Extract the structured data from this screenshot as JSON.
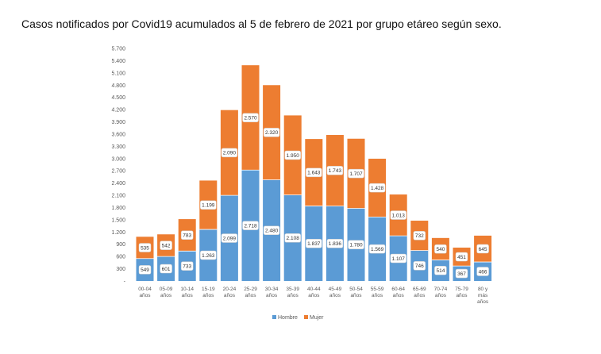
{
  "title": "Casos notificados por Covid19 acumulados al 5 de febrero de 2021 por grupo etáreo según sexo.",
  "chart_data": {
    "type": "bar",
    "stacked": true,
    "categories": [
      [
        "00-04",
        "años"
      ],
      [
        "05-09",
        "años"
      ],
      [
        "10-14",
        "años"
      ],
      [
        "15-19",
        "años"
      ],
      [
        "20-24",
        "años"
      ],
      [
        "25-29",
        "años"
      ],
      [
        "30-34",
        "años"
      ],
      [
        "35-39",
        "años"
      ],
      [
        "40-44",
        "años"
      ],
      [
        "45-49",
        "años"
      ],
      [
        "50-54",
        "años"
      ],
      [
        "55-59",
        "años"
      ],
      [
        "60-64",
        "años"
      ],
      [
        "65-69",
        "años"
      ],
      [
        "70-74",
        "años"
      ],
      [
        "75-79",
        "años"
      ],
      [
        "80 y",
        "más",
        "años"
      ]
    ],
    "series": [
      {
        "name": "Hombre",
        "color": "#5b9bd5",
        "values": [
          549,
          601,
          733,
          1263,
          2099,
          2718,
          2480,
          2108,
          1837,
          1836,
          1780,
          1569,
          1107,
          746,
          514,
          367,
          466
        ],
        "labels": [
          "549",
          "601",
          "733",
          "1.263",
          "2.099",
          "2.718",
          "2.480",
          "2.108",
          "1.837",
          "1.836",
          "1.780",
          "1.569",
          "1.107",
          "746",
          "514",
          "367",
          "466"
        ]
      },
      {
        "name": "Mujer",
        "color": "#ed7d31",
        "values": [
          535,
          542,
          783,
          1199,
          2090,
          2570,
          2320,
          1950,
          1643,
          1743,
          1707,
          1428,
          1013,
          732,
          540,
          451,
          645
        ],
        "labels": [
          "535",
          "542",
          "783",
          "1.199",
          "2.090",
          "2.570",
          "2.320",
          "1.950",
          "1.643",
          "1.743",
          "1.707",
          "1.428",
          "1.013",
          "732",
          "540",
          "451",
          "645"
        ]
      }
    ],
    "ylim": [
      0,
      5700
    ],
    "yticks": [
      "-",
      "300",
      "600",
      "900",
      "1.200",
      "1.500",
      "1.800",
      "2.100",
      "2.400",
      "2.700",
      "3.000",
      "3.300",
      "3.600",
      "3.900",
      "4.200",
      "4.500",
      "4.800",
      "5.100",
      "5.400",
      "5.700"
    ],
    "legend_position": "bottom",
    "grid": false
  }
}
